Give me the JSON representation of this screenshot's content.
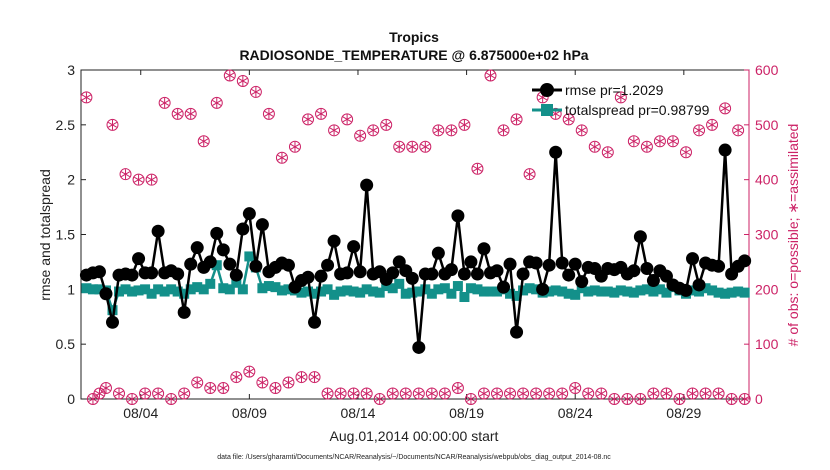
{
  "chart_data": {
    "type": "line",
    "title": "Tropics",
    "subtitle": "RADIOSONDE_TEMPERATURE @ 6.875000e+02 hPa",
    "xlabel": "Aug.01,2014 00:00:00 start",
    "ylabel": "rmse and totalspread",
    "ylabel_right": "# of obs: o=possible; ∗=assimilated",
    "footer": "data file: /Users/gharamti/Documents/NCAR/Reanalysis/~/Documents/NCAR/Reanalysis/webpub/obs_diag_output_2014-08.nc",
    "xlim": [
      0.25,
      31.0
    ],
    "ylim": [
      0,
      3
    ],
    "ylim_right": [
      0,
      600
    ],
    "x_tick_values": [
      3.0,
      8.0,
      13.0,
      18.0,
      23.0,
      28.0
    ],
    "x_tick_labels": [
      "08/04",
      "08/09",
      "08/14",
      "08/19",
      "08/24",
      "08/29"
    ],
    "y_ticks": [
      "0",
      "0.5",
      "1",
      "1.5",
      "2",
      "2.5",
      "3"
    ],
    "y_ticks_right": [
      "0",
      "100",
      "200",
      "300",
      "400",
      "500",
      "600"
    ],
    "colors": {
      "rmse": "#000000",
      "spread": "#13908a",
      "obs": "#cc2266",
      "axis": "#222222"
    },
    "legend": {
      "position": "top-right",
      "entries": [
        "rmse pr=1.2029",
        "totalspread pr=0.98799"
      ]
    },
    "series": [
      {
        "name": "rmse",
        "axis": "left",
        "values": [
          1.13,
          1.15,
          1.16,
          0.96,
          0.7,
          1.13,
          1.14,
          1.13,
          1.28,
          1.15,
          1.15,
          1.53,
          1.15,
          1.17,
          1.14,
          0.79,
          1.23,
          1.38,
          1.2,
          1.25,
          1.51,
          1.36,
          1.23,
          1.13,
          1.55,
          1.69,
          1.21,
          1.59,
          1.16,
          1.2,
          1.24,
          1.22,
          1.02,
          1.08,
          1.11,
          0.7,
          1.12,
          1.22,
          1.44,
          1.14,
          1.15,
          1.39,
          1.16,
          1.95,
          1.14,
          1.16,
          1.09,
          1.15,
          1.25,
          1.17,
          1.1,
          0.47,
          1.14,
          1.14,
          1.33,
          1.14,
          1.18,
          1.67,
          1.14,
          1.25,
          1.14,
          1.37,
          1.15,
          1.17,
          1.02,
          1.23,
          0.61,
          1.14,
          1.25,
          1.24,
          1.0,
          1.22,
          2.25,
          1.24,
          1.13,
          1.23,
          1.07,
          1.2,
          1.19,
          1.12,
          1.19,
          1.18,
          1.2,
          1.14,
          1.17,
          1.48,
          1.19,
          1.08,
          1.17,
          1.12,
          1.04,
          1.01,
          0.99,
          1.28,
          1.04,
          1.24,
          1.22,
          1.21,
          2.27,
          1.14,
          1.21,
          1.26
        ]
      },
      {
        "name": "totalspread",
        "axis": "left",
        "values": [
          1.01,
          1.0,
          1.0,
          0.99,
          0.81,
          0.98,
          1.0,
          0.98,
          0.99,
          1.0,
          0.96,
          1.0,
          0.98,
          1.0,
          0.98,
          0.96,
          1.0,
          1.02,
          1.0,
          1.05,
          1.22,
          1.01,
          1.0,
          1.06,
          1.0,
          1.3,
          1.2,
          1.01,
          1.03,
          1.02,
          0.99,
          1.0,
          0.99,
          0.97,
          0.98,
          0.96,
          0.98,
          1.0,
          0.95,
          0.98,
          0.99,
          0.98,
          0.97,
          1.0,
          0.98,
          0.97,
          1.03,
          1.01,
          1.05,
          0.96,
          0.97,
          0.98,
          1.0,
          0.96,
          1.0,
          1.01,
          0.96,
          1.03,
          0.93,
          1.01,
          1.0,
          0.98,
          0.98,
          0.98,
          1.0,
          0.96,
          0.94,
          0.99,
          1.01,
          1.0,
          0.97,
          0.98,
          0.99,
          0.98,
          0.96,
          0.95,
          1.01,
          0.98,
          0.99,
          0.98,
          0.98,
          0.97,
          0.99,
          0.98,
          0.97,
          0.99,
          1.0,
          0.98,
          1.0,
          0.97,
          1.02,
          0.99,
          0.96,
          0.99,
          0.98,
          1.01,
          0.99,
          0.97,
          0.96,
          0.97,
          0.98,
          0.97
        ]
      },
      {
        "name": "obs possible",
        "axis": "right",
        "values": [
          550,
          0,
          10,
          20,
          500,
          10,
          410,
          0,
          400,
          10,
          400,
          10,
          540,
          0,
          520,
          10,
          520,
          30,
          470,
          20,
          540,
          20,
          590,
          40,
          580,
          50,
          560,
          30,
          520,
          20,
          440,
          30,
          460,
          40,
          510,
          40,
          520,
          10,
          490,
          10,
          510,
          10,
          480,
          10,
          490,
          0,
          500,
          10,
          460,
          10,
          460,
          10,
          460,
          10,
          490,
          10,
          490,
          20,
          500,
          0,
          420,
          10,
          590,
          10,
          490,
          10,
          510,
          10,
          410,
          10,
          550,
          10,
          520,
          10,
          510,
          20,
          490,
          10,
          460,
          10,
          450,
          0,
          550,
          0,
          470,
          0,
          460,
          10,
          470,
          10,
          470,
          0,
          450,
          10,
          490,
          10,
          500,
          10,
          530,
          0,
          490,
          0,
          470
        ]
      },
      {
        "name": "obs assimilated",
        "axis": "right",
        "values": [
          550,
          0,
          10,
          20,
          500,
          10,
          410,
          0,
          400,
          10,
          400,
          10,
          540,
          0,
          520,
          10,
          520,
          30,
          470,
          20,
          540,
          20,
          590,
          40,
          580,
          50,
          560,
          30,
          520,
          20,
          440,
          30,
          460,
          40,
          510,
          40,
          520,
          10,
          490,
          10,
          510,
          10,
          480,
          10,
          490,
          0,
          500,
          10,
          460,
          10,
          460,
          10,
          460,
          10,
          490,
          10,
          490,
          20,
          500,
          0,
          420,
          10,
          590,
          10,
          490,
          10,
          510,
          10,
          410,
          10,
          550,
          10,
          520,
          10,
          510,
          20,
          490,
          10,
          460,
          10,
          450,
          0,
          550,
          0,
          470,
          0,
          460,
          10,
          470,
          10,
          470,
          0,
          450,
          10,
          490,
          10,
          500,
          10,
          530,
          0,
          490,
          0,
          470
        ]
      }
    ]
  }
}
